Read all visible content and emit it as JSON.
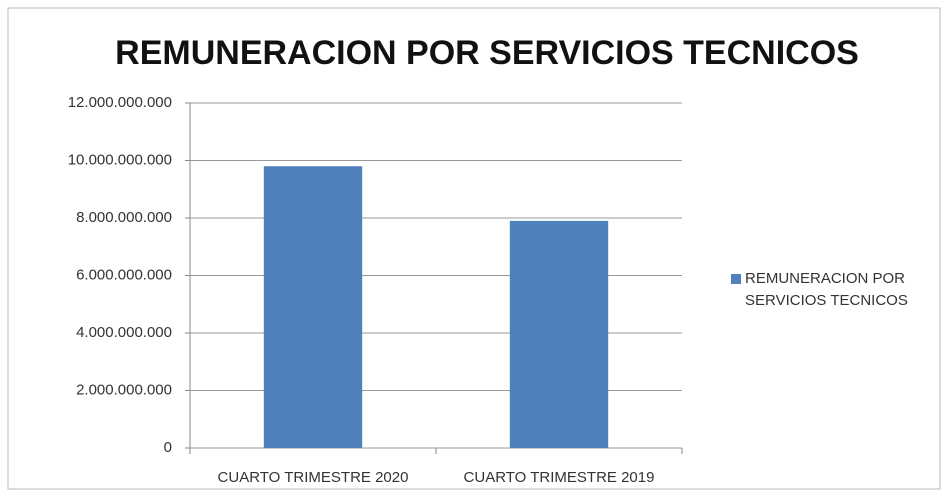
{
  "chart_data": {
    "type": "bar",
    "title": "REMUNERACION POR SERVICIOS TECNICOS",
    "categories": [
      "CUARTO TRIMESTRE 2020",
      "CUARTO TRIMESTRE 2019"
    ],
    "series": [
      {
        "name": "REMUNERACION POR SERVICIOS TECNICOS",
        "color": "#4f81bd",
        "values": [
          9800000000,
          7900000000
        ]
      }
    ],
    "ylim": [
      0,
      12000000000
    ],
    "yticks": [
      0,
      {
        "value": 2000000000,
        "label": "2.000.000.000"
      },
      {
        "value": 4000000000,
        "label": "4.000.000.000"
      },
      {
        "value": 6000000000,
        "label": "6.000.000.000"
      },
      {
        "value": 8000000000,
        "label": "8.000.000.000"
      },
      {
        "value": 10000000000,
        "label": "10.000.000.000"
      },
      {
        "value": 12000000000,
        "label": "12.000.000.000"
      }
    ],
    "grid": true,
    "legend": "right"
  }
}
